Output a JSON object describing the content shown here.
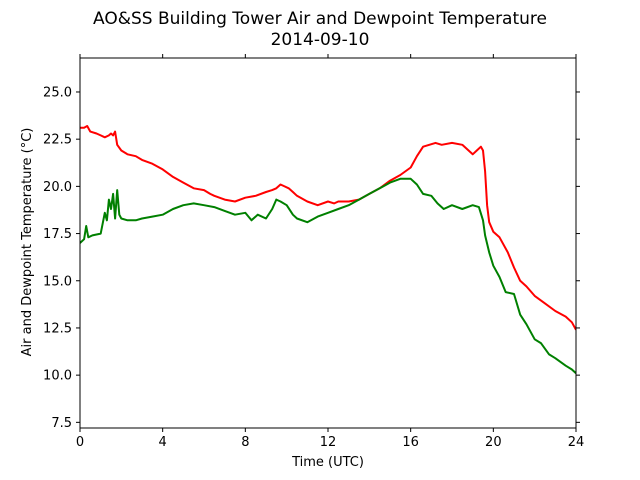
{
  "chart_data": {
    "type": "line",
    "title": "AO&SS Building Tower Air and Dewpoint Temperature",
    "subtitle": "2014-09-10",
    "xlabel": "Time (UTC)",
    "ylabel": "Air and Dewpoint Temperature (°C)",
    "xlim": [
      0,
      24
    ],
    "ylim": [
      7.2,
      26.8
    ],
    "xticks": [
      0,
      4,
      8,
      12,
      16,
      20,
      24
    ],
    "xtick_labels": [
      "0",
      "4",
      "8",
      "12",
      "16",
      "20",
      "24"
    ],
    "yticks": [
      7.5,
      10.0,
      12.5,
      15.0,
      17.5,
      20.0,
      22.5,
      25.0
    ],
    "ytick_labels": [
      "7.5",
      "10.0",
      "12.5",
      "15.0",
      "17.5",
      "20.0",
      "22.5",
      "25.0"
    ],
    "grid": false,
    "series": [
      {
        "color": "#ff0000",
        "x": [
          0,
          0.2,
          0.35,
          0.5,
          0.8,
          1.0,
          1.2,
          1.4,
          1.5,
          1.6,
          1.7,
          1.8,
          2.0,
          2.3,
          2.7,
          3.0,
          3.5,
          4.0,
          4.5,
          5.0,
          5.5,
          6.0,
          6.3,
          6.5,
          7.0,
          7.5,
          8.0,
          8.5,
          9.0,
          9.3,
          9.5,
          9.7,
          9.9,
          10.1,
          10.3,
          10.5,
          11.0,
          11.5,
          12.0,
          12.3,
          12.5,
          13.0,
          13.5,
          14.0,
          14.5,
          15.0,
          15.5,
          16.0,
          16.3,
          16.6,
          16.9,
          17.2,
          17.5,
          18.0,
          18.5,
          19.0,
          19.2,
          19.4,
          19.5,
          19.6,
          19.7,
          19.8,
          20.0,
          20.3,
          20.7,
          21.0,
          21.3,
          21.6,
          22.0,
          22.5,
          23.0,
          23.5,
          23.8,
          24.0
        ],
        "y": [
          23.1,
          23.1,
          23.2,
          22.9,
          22.8,
          22.7,
          22.6,
          22.7,
          22.8,
          22.7,
          22.9,
          22.2,
          21.9,
          21.7,
          21.6,
          21.4,
          21.2,
          20.9,
          20.5,
          20.2,
          19.9,
          19.8,
          19.6,
          19.5,
          19.3,
          19.2,
          19.4,
          19.5,
          19.7,
          19.8,
          19.9,
          20.1,
          20.0,
          19.9,
          19.7,
          19.5,
          19.2,
          19.0,
          19.2,
          19.1,
          19.2,
          19.2,
          19.3,
          19.6,
          19.9,
          20.3,
          20.6,
          21.0,
          21.6,
          22.1,
          22.2,
          22.3,
          22.2,
          22.3,
          22.2,
          21.7,
          21.9,
          22.1,
          21.9,
          20.8,
          19.0,
          18.1,
          17.6,
          17.3,
          16.5,
          15.7,
          15.0,
          14.7,
          14.2,
          13.8,
          13.4,
          13.1,
          12.8,
          12.4
        ]
      },
      {
        "color": "#008000",
        "x": [
          0,
          0.2,
          0.3,
          0.4,
          0.6,
          1.0,
          1.2,
          1.3,
          1.4,
          1.5,
          1.6,
          1.7,
          1.8,
          1.9,
          2.0,
          2.3,
          2.7,
          3.0,
          3.5,
          4.0,
          4.5,
          5.0,
          5.5,
          6.0,
          6.5,
          7.0,
          7.5,
          8.0,
          8.3,
          8.6,
          9.0,
          9.3,
          9.5,
          9.7,
          10.0,
          10.3,
          10.5,
          11.0,
          11.5,
          12.0,
          12.5,
          13.0,
          13.5,
          14.0,
          14.5,
          15.0,
          15.5,
          16.0,
          16.3,
          16.6,
          17.0,
          17.3,
          17.6,
          18.0,
          18.5,
          19.0,
          19.3,
          19.5,
          19.6,
          19.8,
          20.0,
          20.3,
          20.6,
          21.0,
          21.3,
          21.6,
          22.0,
          22.3,
          22.7,
          23.0,
          23.5,
          23.8,
          24.0
        ],
        "y": [
          17.0,
          17.2,
          17.9,
          17.3,
          17.4,
          17.5,
          18.6,
          18.2,
          19.3,
          18.8,
          19.6,
          18.3,
          19.8,
          18.5,
          18.3,
          18.2,
          18.2,
          18.3,
          18.4,
          18.5,
          18.8,
          19.0,
          19.1,
          19.0,
          18.9,
          18.7,
          18.5,
          18.6,
          18.2,
          18.5,
          18.3,
          18.8,
          19.3,
          19.2,
          19.0,
          18.5,
          18.3,
          18.1,
          18.4,
          18.6,
          18.8,
          19.0,
          19.3,
          19.6,
          19.9,
          20.2,
          20.4,
          20.4,
          20.1,
          19.6,
          19.5,
          19.1,
          18.8,
          19.0,
          18.8,
          19.0,
          18.9,
          18.2,
          17.4,
          16.5,
          15.8,
          15.2,
          14.4,
          14.3,
          13.2,
          12.7,
          11.9,
          11.7,
          11.1,
          10.9,
          10.5,
          10.3,
          10.1
        ]
      }
    ]
  }
}
